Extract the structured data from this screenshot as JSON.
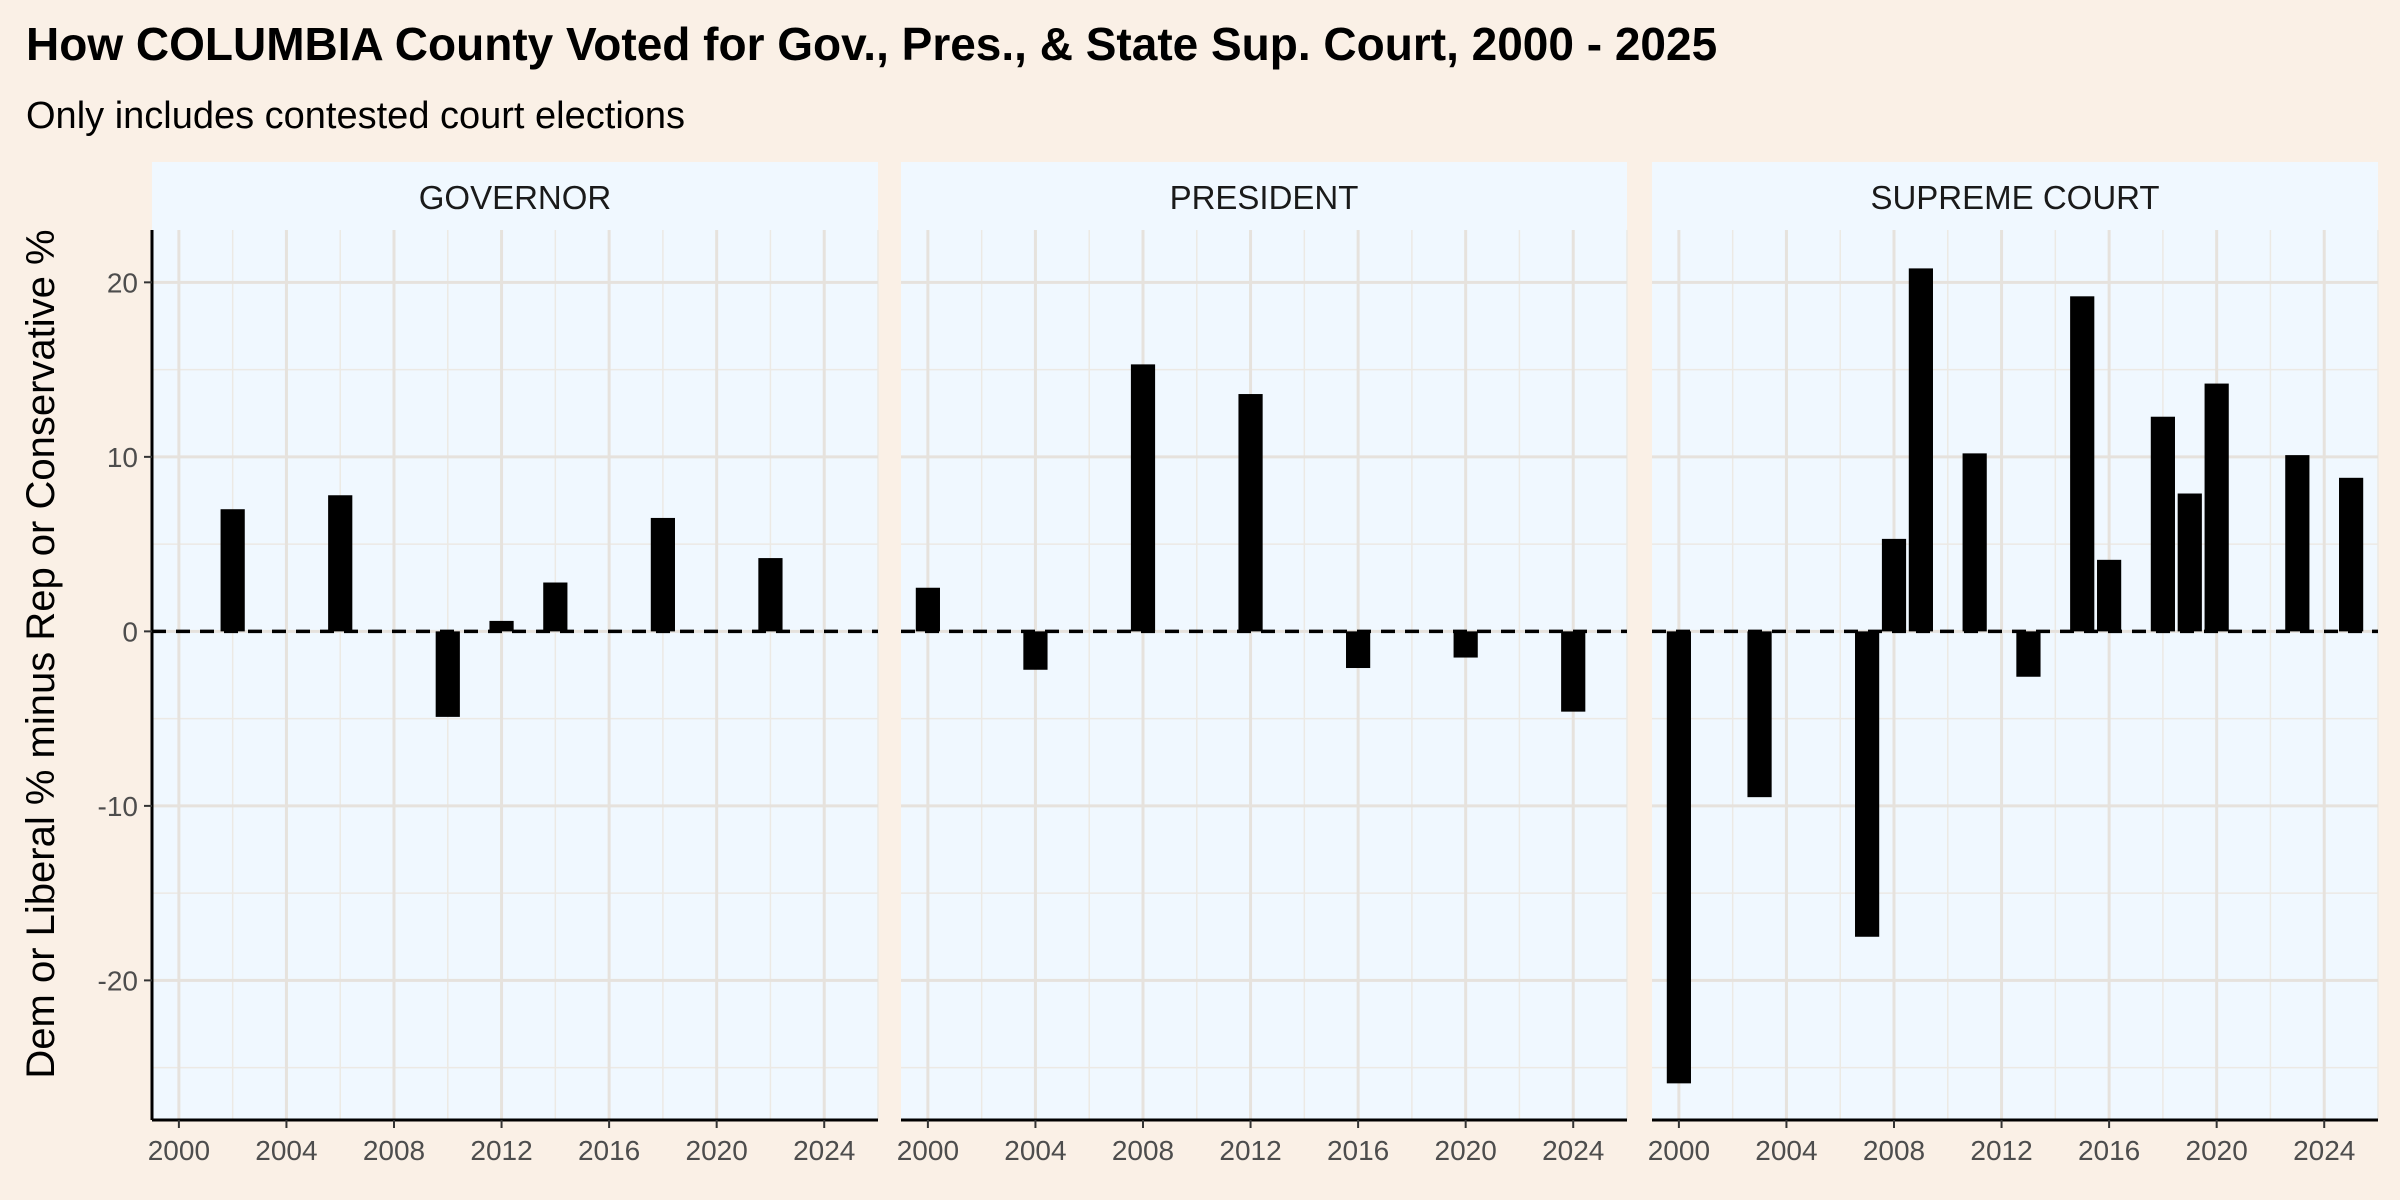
{
  "chart_data": {
    "type": "bar",
    "title": "How COLUMBIA County Voted for Gov., Pres., & State Sup. Court, 2000 - 2025",
    "subtitle": "Only includes contested court elections",
    "ylabel": "Dem or Liberal % minus Rep or Conservative %",
    "xlabel": "",
    "xlim": [
      1999,
      2026
    ],
    "ylim": [
      -28,
      23
    ],
    "x_ticks": [
      2000,
      2004,
      2008,
      2012,
      2016,
      2020,
      2024
    ],
    "x_tick_labels": [
      "2000",
      "2004",
      "2008",
      "2012",
      "2016",
      "2020",
      "2024"
    ],
    "y_ticks": [
      -20,
      -10,
      0,
      10,
      20
    ],
    "y_tick_labels": [
      "-20",
      "-10",
      "0",
      "10",
      "20"
    ],
    "reference_line": {
      "y": 0,
      "style": "dashed"
    },
    "grid": true,
    "panels": [
      {
        "name": "GOVERNOR",
        "x": [
          2002,
          2006,
          2010,
          2012,
          2014,
          2018,
          2022
        ],
        "values": [
          7.0,
          7.8,
          -4.9,
          0.6,
          2.8,
          6.5,
          4.2
        ]
      },
      {
        "name": "PRESIDENT",
        "x": [
          2000,
          2004,
          2008,
          2012,
          2016,
          2020,
          2024
        ],
        "values": [
          2.5,
          -2.2,
          15.3,
          13.6,
          -2.1,
          -1.5,
          -4.6
        ]
      },
      {
        "name": "SUPREME COURT",
        "x": [
          2000,
          2003,
          2007,
          2008,
          2009,
          2011,
          2013,
          2015,
          2016,
          2018,
          2019,
          2020,
          2023,
          2025
        ],
        "values": [
          -25.9,
          -9.5,
          -17.5,
          5.3,
          20.8,
          10.2,
          -2.6,
          19.2,
          4.1,
          12.3,
          7.9,
          14.2,
          10.1,
          8.8
        ]
      }
    ]
  }
}
